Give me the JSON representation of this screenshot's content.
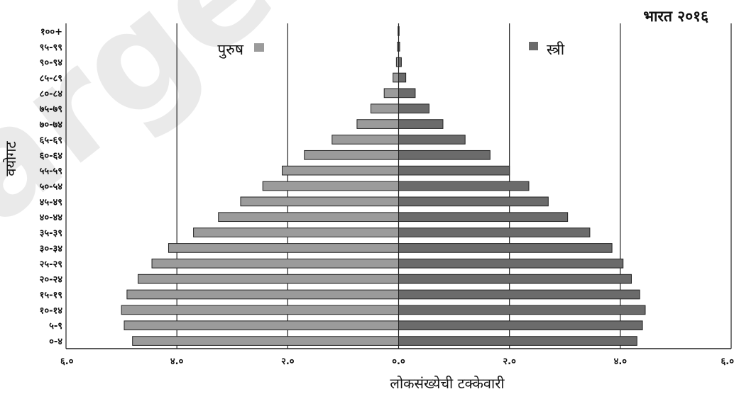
{
  "chart_data": {
    "type": "bar",
    "orientation": "horizontal",
    "layout": "population-pyramid",
    "title": "भारत २०१६",
    "xlabel": "लोकसंख्येची टक्केवारी",
    "ylabel": "वयोगट",
    "xlim": [
      -6,
      6
    ],
    "x_tick_labels": [
      "६.०",
      "४.०",
      "२.०",
      "०.०",
      "२.०",
      "४.०",
      "६.०"
    ],
    "x_tick_values": [
      -6,
      -4,
      -2,
      0,
      2,
      4,
      6
    ],
    "grid": "vertical",
    "legend_placement": "top-inside",
    "watermark": "Target",
    "categories": [
      "0-4",
      "5-9",
      "10-14",
      "15-19",
      "20-24",
      "25-29",
      "30-34",
      "35-39",
      "40-44",
      "45-49",
      "50-54",
      "55-59",
      "60-64",
      "65-69",
      "70-74",
      "75-79",
      "80-84",
      "85-89",
      "90-94",
      "95-99",
      "100+"
    ],
    "category_labels": [
      "०-४",
      "५-९",
      "१०-१४",
      "१५-१९",
      "२०-२४",
      "२५-२९",
      "३०-३४",
      "३५-३९",
      "४०-४४",
      "४५-४९",
      "५०-५४",
      "५५-५९",
      "६०-६४",
      "६५-६९",
      "७०-७४",
      "७५-७९",
      "८०-८४",
      "८५-८९",
      "९०-९४",
      "९५-९९",
      "१००+"
    ],
    "series": [
      {
        "name": "पुरुष",
        "side": "left",
        "color": "#9b9b9b",
        "values": [
          4.8,
          4.95,
          5.0,
          4.9,
          4.7,
          4.45,
          4.15,
          3.7,
          3.25,
          2.85,
          2.45,
          2.1,
          1.7,
          1.2,
          0.75,
          0.5,
          0.26,
          0.1,
          0.04,
          0.02,
          0.01
        ]
      },
      {
        "name": "स्त्री",
        "side": "right",
        "color": "#6b6b6b",
        "values": [
          4.3,
          4.4,
          4.45,
          4.35,
          4.2,
          4.05,
          3.85,
          3.45,
          3.05,
          2.7,
          2.35,
          2.0,
          1.65,
          1.2,
          0.8,
          0.55,
          0.3,
          0.13,
          0.05,
          0.02,
          0.01
        ]
      }
    ]
  }
}
